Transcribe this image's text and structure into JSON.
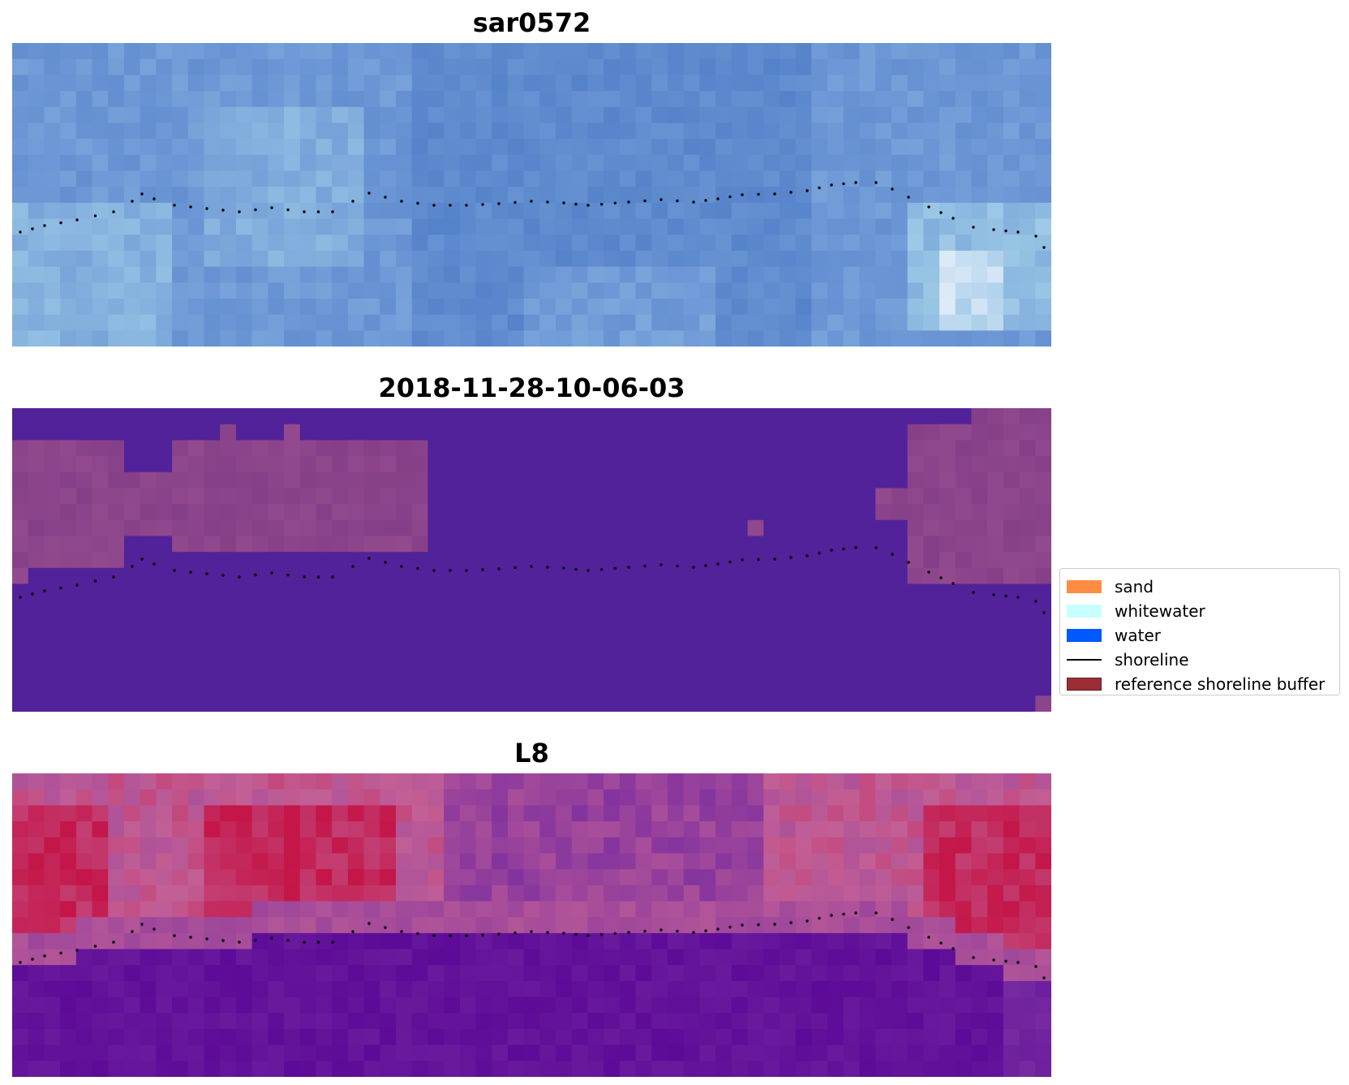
{
  "panels": [
    {
      "title": "sar0572",
      "palette": "blue"
    },
    {
      "title": "2018-11-28-10-06-03",
      "palette": "classification"
    },
    {
      "title": "L8",
      "palette": "index"
    }
  ],
  "legend": {
    "items": [
      {
        "label": "sand",
        "color": "#ff8c42",
        "kind": "patch"
      },
      {
        "label": "whitewater",
        "color": "#c8ffff",
        "kind": "patch"
      },
      {
        "label": "water",
        "color": "#0058ff",
        "kind": "patch"
      },
      {
        "label": "shoreline",
        "color": "#000000",
        "kind": "line"
      },
      {
        "label": "reference shoreline buffer",
        "color": "#9a2e34",
        "kind": "patch"
      }
    ]
  },
  "colors": {
    "classification_water": "#51229a",
    "classification_buffer": "#843f88",
    "shoreline_points": "#000000"
  }
}
